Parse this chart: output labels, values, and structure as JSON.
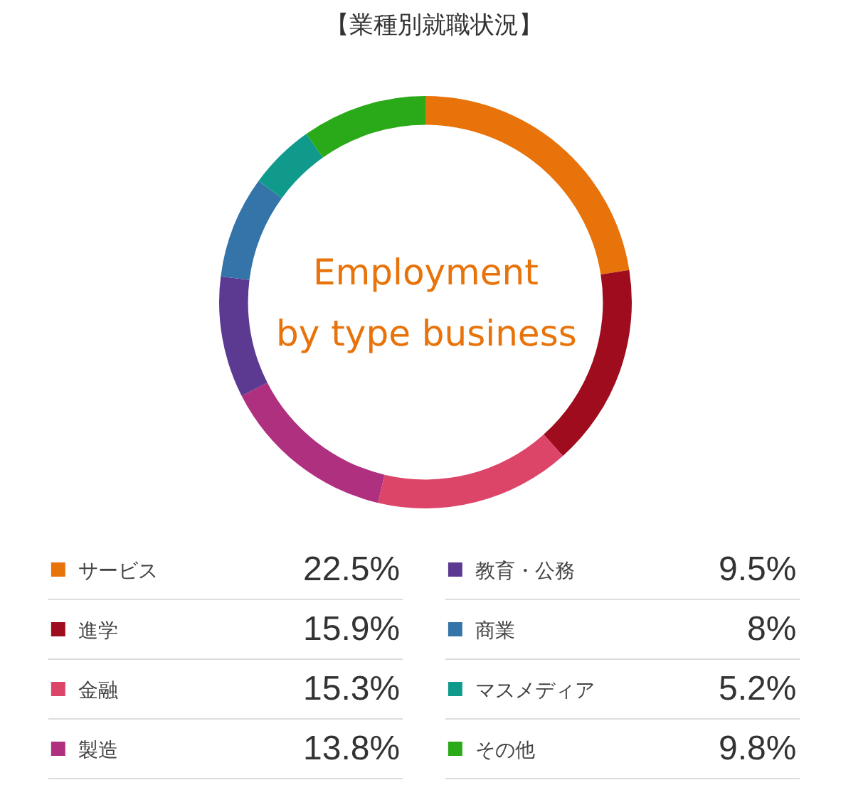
{
  "chart_data": {
    "type": "donut",
    "title": "【業種別就職状況】",
    "annotations": [
      "Employment\nby type business"
    ],
    "categories": [
      "サービス",
      "進学",
      "金融",
      "製造",
      "教育・公務",
      "商業",
      "マスメディア",
      "その他"
    ],
    "values": [
      22.5,
      15.9,
      15.3,
      13.8,
      9.5,
      8,
      5.2,
      9.8
    ],
    "colors": [
      "#e8730a",
      "#9e0c1e",
      "#dc4468",
      "#b03080",
      "#5c3a92",
      "#3474a8",
      "#109a8c",
      "#2aaa18"
    ],
    "value_labels": [
      "22.5%",
      "15.9%",
      "15.3%",
      "13.8%",
      "9.5%",
      "8%",
      "5.2%",
      "9.8%"
    ],
    "legend": "bottom"
  }
}
